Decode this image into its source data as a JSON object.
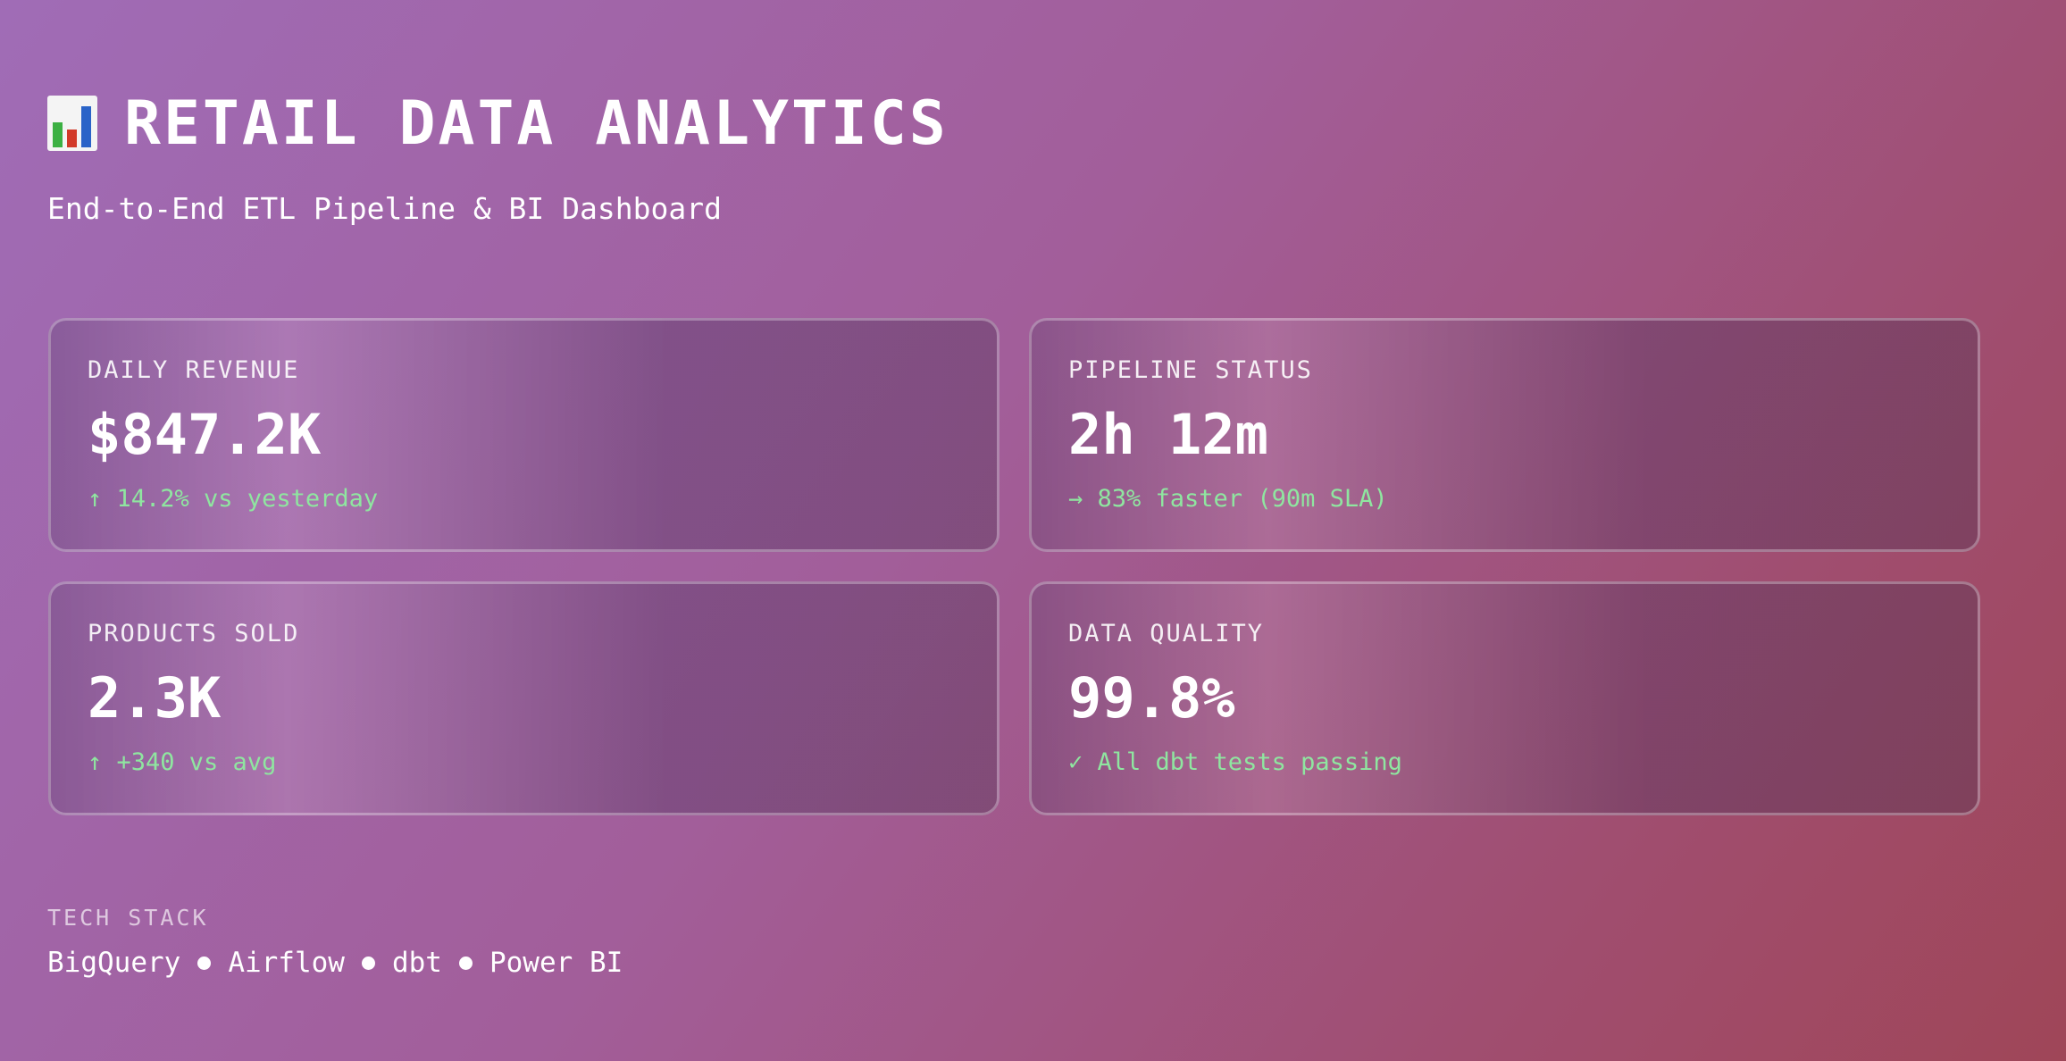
{
  "header": {
    "title": "RETAIL DATA ANALYTICS",
    "subtitle": "End-to-End ETL Pipeline & BI Dashboard"
  },
  "cards": [
    {
      "label": "DAILY REVENUE",
      "value": "$847.2K",
      "change": "↑ 14.2% vs yesterday"
    },
    {
      "label": "PIPELINE STATUS",
      "value": "2h 12m",
      "change": "→ 83% faster (90m SLA)"
    },
    {
      "label": "PRODUCTS SOLD",
      "value": "2.3K",
      "change": "↑ +340 vs avg"
    },
    {
      "label": "DATA QUALITY",
      "value": "99.8%",
      "change": "✓ All dbt tests passing"
    }
  ],
  "tech_stack": {
    "label": "TECH STACK",
    "items": [
      "BigQuery",
      "Airflow",
      "dbt",
      "Power BI"
    ]
  }
}
